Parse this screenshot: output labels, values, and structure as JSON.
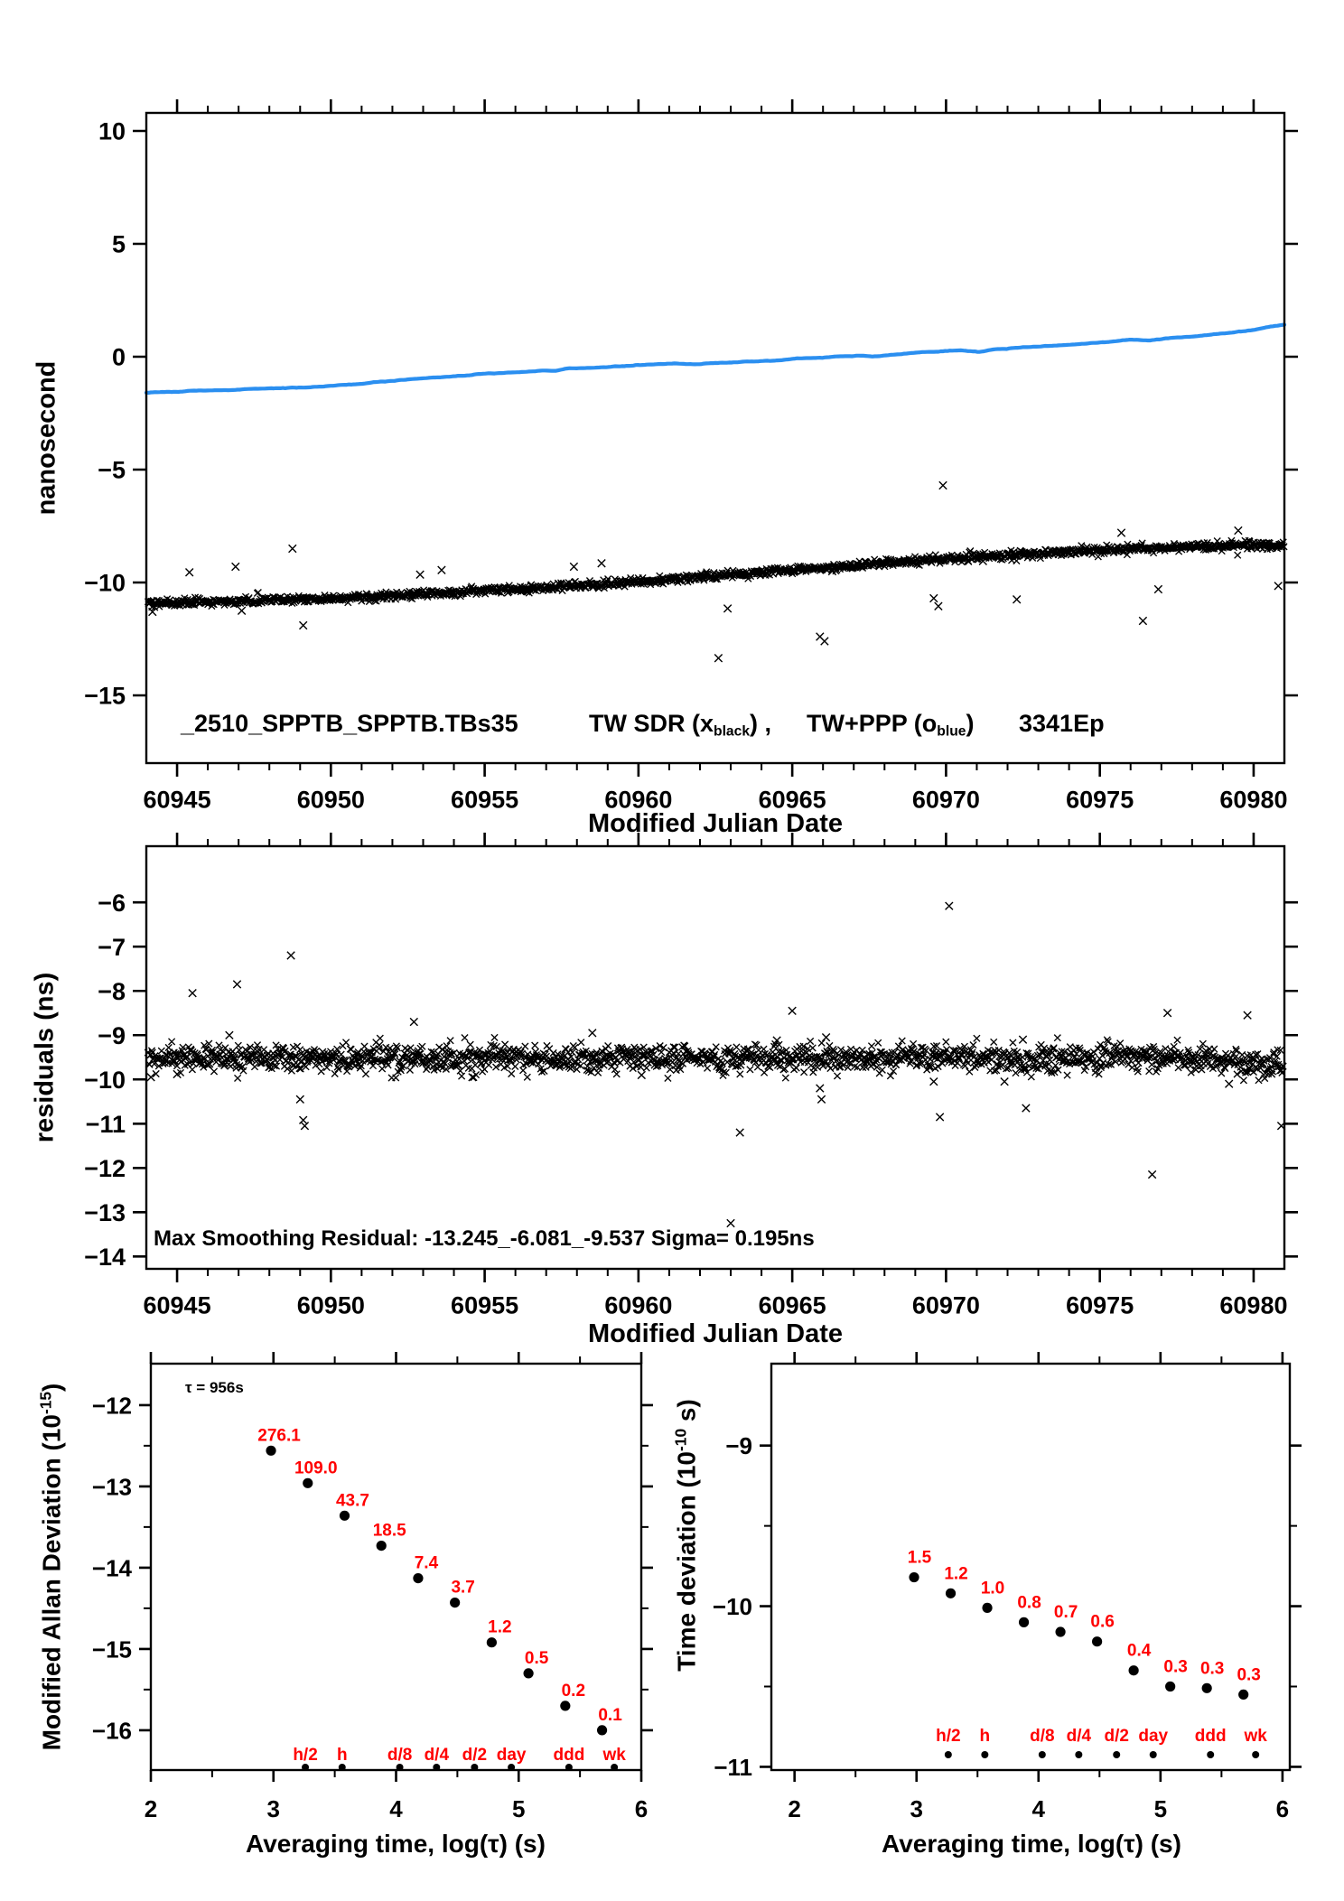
{
  "page": {
    "background": "#ffffff",
    "axis_color": "#000000",
    "marker_color": "#000000",
    "line_blue": "#2B8FF0",
    "label_red": "#ff0000"
  },
  "chart_data": [
    {
      "id": "time-transfer",
      "type": "scatter",
      "xlabel": "Modified Julian Date",
      "ylabel": "nanosecond",
      "xlim": [
        60944,
        60981
      ],
      "ylim": [
        -18.0,
        10.8
      ],
      "xticks": [
        60945,
        60950,
        60955,
        60960,
        60965,
        60970,
        60975,
        60980
      ],
      "xminor_step": 1,
      "yticks": [
        10,
        5,
        0,
        -5,
        -10,
        -15
      ],
      "grid": false,
      "legend": {
        "file": "_2510_SPPTB_SPPTB.TBs35",
        "series1_pre": "TW SDR (x",
        "series1_sub": "black",
        "series1_post": ") ,",
        "series2_pre": "TW+PPP (o",
        "series2_sub": "blue",
        "series2_post": ")",
        "code": "3341Ep"
      },
      "series": [
        {
          "name": "TW SDR",
          "marker": "x",
          "color": "#000000",
          "n": 1500,
          "sigma": 0.085,
          "trend": [
            [
              60944,
              -10.92
            ],
            [
              60946,
              -10.85
            ],
            [
              60948,
              -10.8
            ],
            [
              60950,
              -10.72
            ],
            [
              60952,
              -10.6
            ],
            [
              60954,
              -10.45
            ],
            [
              60956,
              -10.3
            ],
            [
              60958,
              -10.15
            ],
            [
              60960,
              -9.95
            ],
            [
              60962,
              -9.75
            ],
            [
              60964,
              -9.55
            ],
            [
              60966,
              -9.35
            ],
            [
              60968,
              -9.15
            ],
            [
              60970,
              -8.95
            ],
            [
              60972,
              -8.8
            ],
            [
              60974,
              -8.65
            ],
            [
              60976,
              -8.52
            ],
            [
              60978,
              -8.42
            ],
            [
              60979.5,
              -8.36
            ],
            [
              60981,
              -8.3
            ]
          ]
        },
        {
          "name": "TW+PPP",
          "marker": "line",
          "color": "#2B8FF0",
          "points": [
            [
              60944.0,
              -1.6
            ],
            [
              60945.2,
              -1.55
            ],
            [
              60946.5,
              -1.5
            ],
            [
              60947.6,
              -1.45
            ],
            [
              60948.4,
              -1.42
            ],
            [
              60949.3,
              -1.36
            ],
            [
              60950.2,
              -1.28
            ],
            [
              60951.0,
              -1.22
            ],
            [
              60951.6,
              -1.12
            ],
            [
              60952.4,
              -1.05
            ],
            [
              60953.2,
              -0.97
            ],
            [
              60954.2,
              -0.85
            ],
            [
              60955.2,
              -0.72
            ],
            [
              60956.0,
              -0.66
            ],
            [
              60956.8,
              -0.6
            ],
            [
              60957.3,
              -0.62
            ],
            [
              60957.7,
              -0.52
            ],
            [
              60958.6,
              -0.46
            ],
            [
              60959.5,
              -0.4
            ],
            [
              60960.5,
              -0.34
            ],
            [
              60961.2,
              -0.3
            ],
            [
              60961.8,
              -0.33
            ],
            [
              60962.5,
              -0.25
            ],
            [
              60963.5,
              -0.2
            ],
            [
              60964.5,
              -0.14
            ],
            [
              60965.5,
              -0.08
            ],
            [
              60966.5,
              -0.02
            ],
            [
              60967.2,
              0.02
            ],
            [
              60967.6,
              -0.02
            ],
            [
              60968.4,
              0.1
            ],
            [
              60969.2,
              0.17
            ],
            [
              60970.0,
              0.26
            ],
            [
              60970.5,
              0.3
            ],
            [
              60971.1,
              0.22
            ],
            [
              60971.5,
              0.33
            ],
            [
              60972.3,
              0.4
            ],
            [
              60973.2,
              0.5
            ],
            [
              60974.2,
              0.58
            ],
            [
              60975.2,
              0.68
            ],
            [
              60976.0,
              0.76
            ],
            [
              60976.6,
              0.72
            ],
            [
              60977.3,
              0.84
            ],
            [
              60978.2,
              0.95
            ],
            [
              60979.0,
              1.06
            ],
            [
              60979.8,
              1.18
            ],
            [
              60980.4,
              1.3
            ],
            [
              60981.0,
              1.42
            ]
          ]
        }
      ],
      "outliers": [
        [
          60944.2,
          -11.3
        ],
        [
          60945.4,
          -9.55
        ],
        [
          60946.9,
          -9.3
        ],
        [
          60947.1,
          -11.25
        ],
        [
          60948.75,
          -8.5
        ],
        [
          60949.1,
          -11.9
        ],
        [
          60952.9,
          -9.65
        ],
        [
          60953.6,
          -9.45
        ],
        [
          60957.9,
          -9.3
        ],
        [
          60958.8,
          -9.15
        ],
        [
          60962.6,
          -13.35
        ],
        [
          60962.9,
          -11.15
        ],
        [
          60965.2,
          -9.3
        ],
        [
          60965.9,
          -12.4
        ],
        [
          60966.05,
          -12.6
        ],
        [
          60966.3,
          -9.5
        ],
        [
          60969.6,
          -10.7
        ],
        [
          60969.75,
          -11.05
        ],
        [
          60969.9,
          -5.7
        ],
        [
          60971.2,
          -9.05
        ],
        [
          60972.3,
          -10.75
        ],
        [
          60975.7,
          -7.8
        ],
        [
          60976.4,
          -11.7
        ],
        [
          60976.9,
          -10.3
        ],
        [
          60979.5,
          -7.7
        ],
        [
          60980.8,
          -10.15
        ]
      ]
    },
    {
      "id": "residuals",
      "type": "scatter",
      "xlabel": "Modified Julian Date",
      "ylabel": "residuals (ns)",
      "xlim": [
        60944,
        60981
      ],
      "ylim": [
        -14.28,
        -4.73
      ],
      "xticks": [
        60945,
        60950,
        60955,
        60960,
        60965,
        60970,
        60975,
        60980
      ],
      "xminor_step": 1,
      "yticks": [
        -6,
        -7,
        -8,
        -9,
        -10,
        -11,
        -12,
        -13,
        -14
      ],
      "grid": false,
      "annotation": "Max Smoothing Residual: -13.245_-6.081_-9.537  Sigma= 0.195ns",
      "band": {
        "n": 1600,
        "sigma": 0.155,
        "mean": [
          [
            60944,
            -9.5
          ],
          [
            60948,
            -9.53
          ],
          [
            60952,
            -9.52
          ],
          [
            60956,
            -9.5
          ],
          [
            60960,
            -9.53
          ],
          [
            60964,
            -9.52
          ],
          [
            60968,
            -9.5
          ],
          [
            60972,
            -9.53
          ],
          [
            60975,
            -9.48
          ],
          [
            60977,
            -9.52
          ],
          [
            60979,
            -9.55
          ],
          [
            60980,
            -9.62
          ],
          [
            60981,
            -9.72
          ]
        ]
      },
      "outliers": [
        [
          60944.15,
          -9.95
        ],
        [
          60945.0,
          -9.88
        ],
        [
          60945.5,
          -8.05
        ],
        [
          60946.7,
          -9.0
        ],
        [
          60946.95,
          -7.85
        ],
        [
          60948.7,
          -7.2
        ],
        [
          60949.0,
          -10.45
        ],
        [
          60949.1,
          -10.92
        ],
        [
          60949.15,
          -11.05
        ],
        [
          60952.7,
          -8.7
        ],
        [
          60954.6,
          -9.95
        ],
        [
          60958.5,
          -8.95
        ],
        [
          60960.1,
          -9.9
        ],
        [
          60963.0,
          -13.25
        ],
        [
          60963.3,
          -11.2
        ],
        [
          60964.5,
          -9.12
        ],
        [
          60965.0,
          -8.45
        ],
        [
          60965.9,
          -10.2
        ],
        [
          60965.95,
          -10.45
        ],
        [
          60966.1,
          -9.05
        ],
        [
          60969.6,
          -10.05
        ],
        [
          60969.8,
          -10.85
        ],
        [
          60970.1,
          -6.08
        ],
        [
          60971.9,
          -10.05
        ],
        [
          60972.5,
          -9.1
        ],
        [
          60972.6,
          -10.65
        ],
        [
          60976.7,
          -12.15
        ],
        [
          60977.2,
          -8.5
        ],
        [
          60979.2,
          -10.1
        ],
        [
          60979.8,
          -8.55
        ],
        [
          60980.9,
          -11.05
        ]
      ]
    },
    {
      "id": "modified-allan-deviation",
      "type": "scatter",
      "xlabel": "Averaging time, log(τ) (s)",
      "ylabel_pre": "Modified Allan Deviation (10",
      "ylabel_sup": "-15",
      "ylabel_post": ")",
      "tau_annotation": "τ = 956s",
      "xlim": [
        2,
        6
      ],
      "ylim": [
        -16.49,
        -11.49
      ],
      "xticks": [
        2,
        3,
        4,
        5,
        6
      ],
      "xminor_step": 0.5,
      "yticks": [
        -12,
        -13,
        -14,
        -15,
        -16
      ],
      "yminor_step": 0.5,
      "grid": false,
      "point_color": "#000000",
      "label_color": "#ff0000",
      "points": {
        "log_tau": [
          2.98,
          3.28,
          3.58,
          3.88,
          4.18,
          4.48,
          4.78,
          5.08,
          5.38,
          5.68
        ],
        "log_dev": [
          -12.56,
          -12.96,
          -13.36,
          -13.73,
          -14.13,
          -14.43,
          -14.92,
          -15.3,
          -15.7,
          -16.0
        ],
        "labels": [
          "276.1",
          "109.0",
          "43.7",
          "18.5",
          "7.4",
          "3.7",
          "1.2",
          "0.5",
          "0.2",
          "0.1"
        ]
      },
      "ref_marks": {
        "labels": [
          "h/2",
          "h",
          "d/8",
          "d/4",
          "d/2",
          "day",
          "ddd",
          "wk"
        ],
        "log_tau": [
          3.26,
          3.56,
          4.03,
          4.33,
          4.64,
          4.94,
          5.41,
          5.78
        ]
      }
    },
    {
      "id": "time-deviation",
      "type": "scatter",
      "xlabel": "Averaging time, log(τ) (s)",
      "ylabel_pre": "Time deviation (10",
      "ylabel_sup": "-10",
      "ylabel_post": " s)",
      "xlim": [
        1.81,
        6.06
      ],
      "ylim": [
        -11.02,
        -8.49
      ],
      "xticks": [
        2,
        3,
        4,
        5,
        6
      ],
      "xminor_step": 0.5,
      "yticks": [
        -9,
        -10,
        -11
      ],
      "yminor_step": 0.5,
      "grid": false,
      "point_color": "#000000",
      "label_color": "#ff0000",
      "points": {
        "log_tau": [
          2.98,
          3.28,
          3.58,
          3.88,
          4.18,
          4.48,
          4.78,
          5.08,
          5.38,
          5.68
        ],
        "log_dev": [
          -9.82,
          -9.92,
          -10.01,
          -10.1,
          -10.16,
          -10.22,
          -10.4,
          -10.5,
          -10.51,
          -10.55
        ],
        "labels": [
          "1.5",
          "1.2",
          "1.0",
          "0.8",
          "0.7",
          "0.6",
          "0.4",
          "0.3",
          "0.3",
          "0.3"
        ]
      },
      "ref_marks": {
        "labels": [
          "h/2",
          "h",
          "d/8",
          "d/4",
          "d/2",
          "day",
          "ddd",
          "wk"
        ],
        "log_tau": [
          3.26,
          3.56,
          4.03,
          4.33,
          4.64,
          4.94,
          5.41,
          5.78
        ]
      }
    }
  ]
}
